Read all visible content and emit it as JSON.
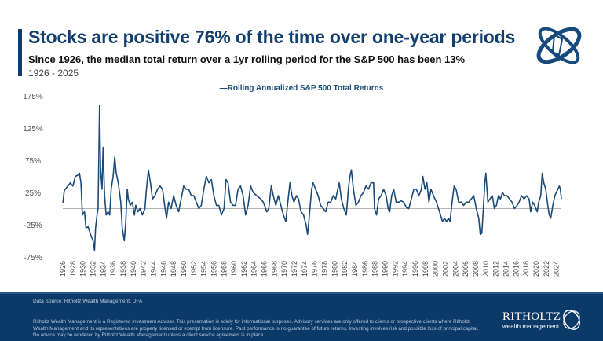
{
  "header": {
    "title": "Stocks are positive 76% of the time over one-year periods",
    "subtitle": "Since 1926, the median total return over a 1yr rolling period for the S&P 500 has been 13%",
    "date_range": "1926 - 2025"
  },
  "colors": {
    "brand": "#0f3c6b",
    "line": "#1b4a78",
    "zero_line": "#9a9a9a",
    "footer": "#0c3a68"
  },
  "chart_data": {
    "type": "line",
    "title": "",
    "xlabel": "",
    "ylabel": "",
    "legend": {
      "position": "top-center",
      "label": "—Rolling Annualized S&P 500 Total Returns"
    },
    "xlim": [
      1926,
      2025
    ],
    "ylim": [
      -75,
      175
    ],
    "yticks": [
      175,
      125,
      75,
      25,
      -25,
      -75
    ],
    "ytick_labels": [
      "175%",
      "125%",
      "75%",
      "25%",
      "-25%",
      "-75%"
    ],
    "xtick_labels": [
      "1926",
      "1928",
      "1930",
      "1932",
      "1934",
      "1936",
      "1938",
      "1940",
      "1942",
      "1944",
      "1946",
      "1948",
      "1950",
      "1952",
      "1954",
      "1956",
      "1958",
      "1960",
      "1962",
      "1964",
      "1966",
      "1968",
      "1970",
      "1972",
      "1974",
      "1976",
      "1978",
      "1980",
      "1982",
      "1984",
      "1986",
      "1988",
      "1990",
      "1992",
      "1994",
      "1996",
      "1998",
      "2000",
      "2002",
      "2004",
      "2006",
      "2008",
      "2010",
      "2012",
      "2014",
      "2016",
      "2018",
      "2020",
      "2022",
      "2024"
    ],
    "reference_line": 0,
    "grid": false,
    "series": [
      {
        "name": "Rolling Annualized S&P 500 Total Returns",
        "points": [
          [
            1926.0,
            8
          ],
          [
            1926.3,
            28
          ],
          [
            1927,
            35
          ],
          [
            1927.5,
            40
          ],
          [
            1928,
            35
          ],
          [
            1928.5,
            50
          ],
          [
            1929,
            52
          ],
          [
            1929.3,
            55
          ],
          [
            1929.6,
            40
          ],
          [
            1929.9,
            -10
          ],
          [
            1930.3,
            -5
          ],
          [
            1930.6,
            -30
          ],
          [
            1931,
            -28
          ],
          [
            1931.5,
            -40
          ],
          [
            1932,
            -50
          ],
          [
            1932.3,
            -65
          ],
          [
            1932.5,
            -30
          ],
          [
            1932.8,
            -10
          ],
          [
            1933.0,
            0
          ],
          [
            1933.3,
            160
          ],
          [
            1933.5,
            60
          ],
          [
            1933.8,
            30
          ],
          [
            1934.0,
            95
          ],
          [
            1934.3,
            20
          ],
          [
            1934.6,
            -10
          ],
          [
            1935.0,
            -5
          ],
          [
            1935.3,
            -10
          ],
          [
            1935.6,
            30
          ],
          [
            1936.0,
            50
          ],
          [
            1936.3,
            80
          ],
          [
            1936.6,
            55
          ],
          [
            1937.0,
            40
          ],
          [
            1937.5,
            10
          ],
          [
            1937.8,
            -30
          ],
          [
            1938.2,
            -50
          ],
          [
            1938.5,
            -20
          ],
          [
            1938.8,
            30
          ],
          [
            1939.0,
            15
          ],
          [
            1939.4,
            5
          ],
          [
            1939.8,
            10
          ],
          [
            1940.2,
            -10
          ],
          [
            1940.5,
            5
          ],
          [
            1940.9,
            -5
          ],
          [
            1941.3,
            0
          ],
          [
            1941.8,
            -10
          ],
          [
            1942.3,
            0
          ],
          [
            1942.6,
            30
          ],
          [
            1943.0,
            60
          ],
          [
            1943.4,
            40
          ],
          [
            1943.8,
            15
          ],
          [
            1944.3,
            20
          ],
          [
            1944.8,
            30
          ],
          [
            1945.3,
            35
          ],
          [
            1945.8,
            30
          ],
          [
            1946.3,
            0
          ],
          [
            1946.6,
            -15
          ],
          [
            1947,
            10
          ],
          [
            1947.5,
            0
          ],
          [
            1948,
            20
          ],
          [
            1948.5,
            5
          ],
          [
            1949,
            -5
          ],
          [
            1949.5,
            15
          ],
          [
            1950,
            35
          ],
          [
            1950.5,
            30
          ],
          [
            1951,
            30
          ],
          [
            1951.5,
            20
          ],
          [
            1952,
            20
          ],
          [
            1952.5,
            10
          ],
          [
            1953,
            0
          ],
          [
            1953.5,
            5
          ],
          [
            1954,
            30
          ],
          [
            1954.5,
            50
          ],
          [
            1955,
            40
          ],
          [
            1955.5,
            45
          ],
          [
            1956,
            20
          ],
          [
            1956.5,
            5
          ],
          [
            1957,
            5
          ],
          [
            1957.5,
            -10
          ],
          [
            1958,
            0
          ],
          [
            1958.4,
            45
          ],
          [
            1958.8,
            40
          ],
          [
            1959.3,
            10
          ],
          [
            1959.8,
            5
          ],
          [
            1960.3,
            5
          ],
          [
            1960.8,
            30
          ],
          [
            1961.3,
            35
          ],
          [
            1961.8,
            20
          ],
          [
            1962.3,
            -10
          ],
          [
            1962.8,
            5
          ],
          [
            1963.3,
            35
          ],
          [
            1963.8,
            25
          ],
          [
            1964.5,
            20
          ],
          [
            1965.3,
            15
          ],
          [
            1965.8,
            10
          ],
          [
            1966.5,
            -5
          ],
          [
            1966.9,
            0
          ],
          [
            1967.4,
            35
          ],
          [
            1967.8,
            20
          ],
          [
            1968.3,
            5
          ],
          [
            1968.8,
            20
          ],
          [
            1969.3,
            5
          ],
          [
            1969.8,
            -10
          ],
          [
            1970.3,
            -20
          ],
          [
            1970.6,
            5
          ],
          [
            1971.1,
            40
          ],
          [
            1971.5,
            20
          ],
          [
            1971.9,
            10
          ],
          [
            1972.4,
            20
          ],
          [
            1972.8,
            15
          ],
          [
            1973.3,
            -5
          ],
          [
            1973.8,
            -10
          ],
          [
            1974.3,
            -25
          ],
          [
            1974.6,
            -40
          ],
          [
            1974.9,
            -15
          ],
          [
            1975.4,
            30
          ],
          [
            1975.7,
            40
          ],
          [
            1976.2,
            30
          ],
          [
            1976.7,
            20
          ],
          [
            1977.2,
            5
          ],
          [
            1977.7,
            0
          ],
          [
            1978.2,
            -5
          ],
          [
            1978.7,
            10
          ],
          [
            1979.2,
            10
          ],
          [
            1979.7,
            20
          ],
          [
            1980.2,
            15
          ],
          [
            1980.6,
            30
          ],
          [
            1980.9,
            40
          ],
          [
            1981.3,
            15
          ],
          [
            1981.8,
            0
          ],
          [
            1982.3,
            -10
          ],
          [
            1982.7,
            30
          ],
          [
            1983.0,
            50
          ],
          [
            1983.3,
            60
          ],
          [
            1983.7,
            30
          ],
          [
            1984.2,
            5
          ],
          [
            1984.7,
            10
          ],
          [
            1985.2,
            20
          ],
          [
            1985.7,
            25
          ],
          [
            1986.2,
            35
          ],
          [
            1986.7,
            30
          ],
          [
            1987.2,
            40
          ],
          [
            1987.7,
            40
          ],
          [
            1987.9,
            0
          ],
          [
            1988.3,
            -10
          ],
          [
            1988.7,
            15
          ],
          [
            1989.2,
            20
          ],
          [
            1989.7,
            30
          ],
          [
            1990.2,
            20
          ],
          [
            1990.6,
            0
          ],
          [
            1990.9,
            -5
          ],
          [
            1991.3,
            20
          ],
          [
            1991.7,
            30
          ],
          [
            1992.2,
            10
          ],
          [
            1992.7,
            10
          ],
          [
            1993.2,
            12
          ],
          [
            1993.7,
            10
          ],
          [
            1994.2,
            2
          ],
          [
            1994.7,
            0
          ],
          [
            1995.2,
            15
          ],
          [
            1995.7,
            30
          ],
          [
            1996.2,
            30
          ],
          [
            1996.7,
            20
          ],
          [
            1997.2,
            30
          ],
          [
            1997.5,
            50
          ],
          [
            1997.9,
            30
          ],
          [
            1998.3,
            40
          ],
          [
            1998.7,
            10
          ],
          [
            1999.1,
            30
          ],
          [
            1999.6,
            20
          ],
          [
            2000.2,
            10
          ],
          [
            2000.6,
            0
          ],
          [
            2001.0,
            -10
          ],
          [
            2001.4,
            -20
          ],
          [
            2001.8,
            -15
          ],
          [
            2002.2,
            -20
          ],
          [
            2002.6,
            -15
          ],
          [
            2002.9,
            -20
          ],
          [
            2003.3,
            10
          ],
          [
            2003.7,
            35
          ],
          [
            2004.1,
            30
          ],
          [
            2004.6,
            10
          ],
          [
            2005.1,
            10
          ],
          [
            2005.6,
            5
          ],
          [
            2006.1,
            10
          ],
          [
            2006.6,
            10
          ],
          [
            2007.1,
            15
          ],
          [
            2007.6,
            20
          ],
          [
            2008.1,
            0
          ],
          [
            2008.6,
            -15
          ],
          [
            2008.9,
            -40
          ],
          [
            2009.2,
            -38
          ],
          [
            2009.5,
            0
          ],
          [
            2009.8,
            40
          ],
          [
            2010.0,
            55
          ],
          [
            2010.4,
            10
          ],
          [
            2010.8,
            15
          ],
          [
            2011.3,
            20
          ],
          [
            2011.7,
            0
          ],
          [
            2012.1,
            5
          ],
          [
            2012.5,
            20
          ],
          [
            2012.9,
            15
          ],
          [
            2013.3,
            25
          ],
          [
            2013.7,
            20
          ],
          [
            2014.2,
            20
          ],
          [
            2014.7,
            15
          ],
          [
            2015.2,
            10
          ],
          [
            2015.7,
            0
          ],
          [
            2016.2,
            5
          ],
          [
            2016.6,
            10
          ],
          [
            2017.1,
            20
          ],
          [
            2017.6,
            15
          ],
          [
            2018.1,
            20
          ],
          [
            2018.6,
            15
          ],
          [
            2018.9,
            -5
          ],
          [
            2019.3,
            10
          ],
          [
            2019.7,
            5
          ],
          [
            2020.2,
            -5
          ],
          [
            2020.5,
            10
          ],
          [
            2020.9,
            20
          ],
          [
            2021.2,
            55
          ],
          [
            2021.5,
            40
          ],
          [
            2021.9,
            30
          ],
          [
            2022.3,
            5
          ],
          [
            2022.6,
            -10
          ],
          [
            2022.9,
            -15
          ],
          [
            2023.3,
            5
          ],
          [
            2023.7,
            20
          ],
          [
            2024.0,
            25
          ],
          [
            2024.3,
            30
          ],
          [
            2024.6,
            35
          ],
          [
            2024.8,
            30
          ],
          [
            2025.0,
            15
          ]
        ]
      }
    ]
  },
  "footer": {
    "source": "Data Source: Ritholtz Wealth Management, DFA",
    "disclaimer": "Ritholtz Wealth Management is a Registered Investment Adviser. This presentation is solely for informational purposes. Advisory services are only offered to clients or prospective clients where Ritholtz Wealth Management and its representatives are properly licensed or exempt from licensure. Past performance is no guarantee of future returns. Investing involves risk and possible loss of principal capital. No advice may be rendered by Ritholtz Wealth Management unless a client service agreement is in place.",
    "logo_name": "RITHOLTZ",
    "logo_sub": "wealth management"
  }
}
